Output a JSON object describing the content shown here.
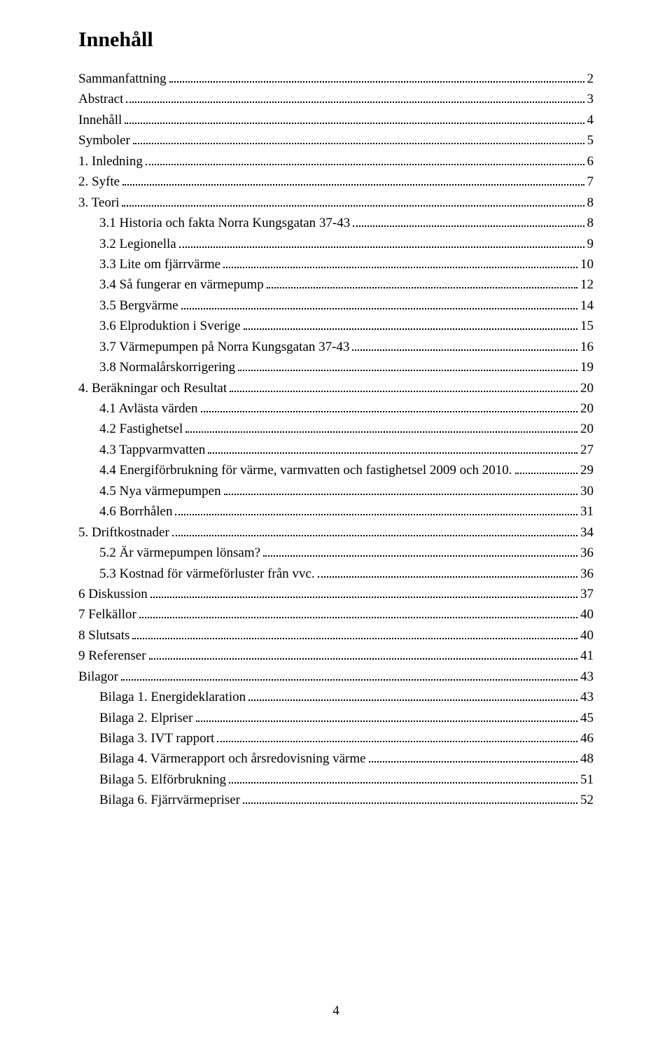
{
  "title": "Innehåll",
  "page_number": "4",
  "entries": [
    {
      "label": "Sammanfattning",
      "page": "2",
      "indent": 0
    },
    {
      "label": "Abstract",
      "page": "3",
      "indent": 0
    },
    {
      "label": "Innehåll",
      "page": "4",
      "indent": 0
    },
    {
      "label": "Symboler",
      "page": "5",
      "indent": 0
    },
    {
      "label": "1.   Inledning",
      "page": "6",
      "indent": 0
    },
    {
      "label": "2.   Syfte",
      "page": "7",
      "indent": 0
    },
    {
      "label": "3.   Teori",
      "page": "8",
      "indent": 0
    },
    {
      "label": "3.1    Historia och fakta Norra Kungsgatan 37-43",
      "page": "8",
      "indent": 1
    },
    {
      "label": "3.2    Legionella",
      "page": "9",
      "indent": 1
    },
    {
      "label": "3.3    Lite om fjärrvärme",
      "page": "10",
      "indent": 1
    },
    {
      "label": "3.4    Så fungerar en värmepump",
      "page": "12",
      "indent": 1
    },
    {
      "label": "3.5    Bergvärme",
      "page": "14",
      "indent": 1
    },
    {
      "label": "3.6    Elproduktion i Sverige",
      "page": "15",
      "indent": 1
    },
    {
      "label": "3.7    Värmepumpen på Norra Kungsgatan 37-43",
      "page": "16",
      "indent": 1
    },
    {
      "label": "3.8    Normalårskorrigering",
      "page": "19",
      "indent": 1
    },
    {
      "label": "4.   Beräkningar och Resultat",
      "page": "20",
      "indent": 0
    },
    {
      "label": "4.1    Avlästa värden",
      "page": "20",
      "indent": 1
    },
    {
      "label": "4.2    Fastighetsel",
      "page": "20",
      "indent": 1
    },
    {
      "label": "4.3    Tappvarmvatten",
      "page": "27",
      "indent": 1
    },
    {
      "label": "4.4    Energiförbrukning för värme, varmvatten och fastighetsel 2009 och 2010.",
      "page": "29",
      "indent": 1
    },
    {
      "label": "4.5    Nya värmepumpen",
      "page": "30",
      "indent": 1
    },
    {
      "label": "4.6    Borrhålen",
      "page": "31",
      "indent": 1
    },
    {
      "label": "5.   Driftkostnader",
      "page": "34",
      "indent": 0
    },
    {
      "label": "5.2    Är värmepumpen lönsam?",
      "page": "36",
      "indent": 1
    },
    {
      "label": "5.3    Kostnad för värmeförluster från vvc.",
      "page": "36",
      "indent": 1
    },
    {
      "label": "6    Diskussion",
      "page": "37",
      "indent": 0
    },
    {
      "label": "7    Felkällor",
      "page": "40",
      "indent": 0
    },
    {
      "label": "8    Slutsats",
      "page": "40",
      "indent": 0
    },
    {
      "label": "9    Referenser",
      "page": "41",
      "indent": 0
    },
    {
      "label": "Bilagor",
      "page": "43",
      "indent": 0
    },
    {
      "label": "Bilaga 1. Energideklaration",
      "page": "43",
      "indent": 2
    },
    {
      "label": "Bilaga 2. Elpriser",
      "page": "45",
      "indent": 2
    },
    {
      "label": "Bilaga 3. IVT rapport",
      "page": "46",
      "indent": 2
    },
    {
      "label": "Bilaga 4. Värmerapport och årsredovisning värme",
      "page": "48",
      "indent": 2
    },
    {
      "label": "Bilaga 5. Elförbrukning",
      "page": "51",
      "indent": 2
    },
    {
      "label": "Bilaga 6. Fjärrvärmepriser",
      "page": "52",
      "indent": 2
    }
  ]
}
